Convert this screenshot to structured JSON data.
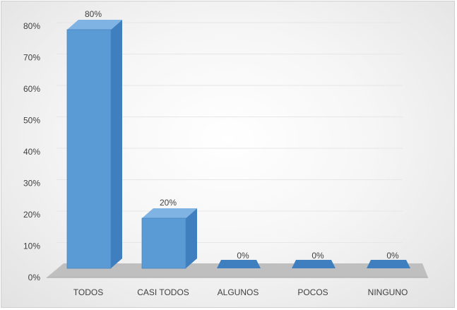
{
  "chart_data": {
    "type": "bar",
    "categories": [
      "TODOS",
      "CASI TODOS",
      "ALGUNOS",
      "POCOS",
      "NINGUNO"
    ],
    "values": [
      80,
      20,
      0,
      0,
      0
    ],
    "data_labels": [
      "80%",
      "20%",
      "0%",
      "0%",
      "0%"
    ],
    "yticks": [
      "0%",
      "10%",
      "20%",
      "30%",
      "40%",
      "50%",
      "60%",
      "70%",
      "80%"
    ],
    "ylim": [
      0,
      80
    ],
    "grid": true,
    "style": "3d",
    "colors": {
      "bar_front": "#5b9bd5",
      "bar_side": "#3f7fbf",
      "bar_top": "#7fb3e3",
      "floor": "#bfbfbf",
      "grid": "#e6e6e6",
      "text": "#404040"
    }
  }
}
